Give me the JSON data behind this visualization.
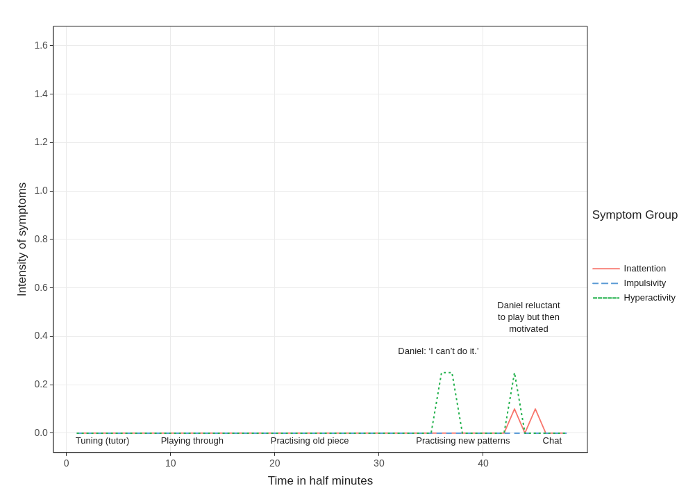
{
  "chart_data": {
    "type": "line",
    "xlabel": "Time in half minutes",
    "ylabel": "Intensity of symptoms",
    "legend_title": "Symptom Group",
    "x": [
      1,
      2,
      3,
      4,
      5,
      6,
      7,
      8,
      9,
      10,
      11,
      12,
      13,
      14,
      15,
      16,
      17,
      18,
      19,
      20,
      21,
      22,
      23,
      24,
      25,
      26,
      27,
      28,
      29,
      30,
      31,
      32,
      33,
      34,
      35,
      36,
      37,
      38,
      39,
      40,
      41,
      42,
      43,
      44,
      45,
      46,
      47,
      48
    ],
    "series": [
      {
        "name": "Inattention",
        "color": "#f8766d",
        "line_style": "solid",
        "values": [
          0,
          0,
          0,
          0,
          0,
          0,
          0,
          0,
          0,
          0,
          0,
          0,
          0,
          0,
          0,
          0,
          0,
          0,
          0,
          0,
          0,
          0,
          0,
          0,
          0,
          0,
          0,
          0,
          0,
          0,
          0,
          0,
          0,
          0,
          0,
          0,
          0,
          0,
          0,
          0,
          0,
          0,
          0.1,
          0,
          0.1,
          0,
          0,
          0
        ]
      },
      {
        "name": "Impulsivity",
        "color": "#5b9bd5",
        "line_style": "dashed",
        "values": [
          0,
          0,
          0,
          0,
          0,
          0,
          0,
          0,
          0,
          0,
          0,
          0,
          0,
          0,
          0,
          0,
          0,
          0,
          0,
          0,
          0,
          0,
          0,
          0,
          0,
          0,
          0,
          0,
          0,
          0,
          0,
          0,
          0,
          0,
          0,
          0,
          0,
          0,
          0,
          0,
          0,
          0,
          0,
          0,
          0,
          0,
          0,
          0
        ]
      },
      {
        "name": "Hyperactivity",
        "color": "#22b14c",
        "line_style": "dotted",
        "values": [
          0,
          0,
          0,
          0,
          0,
          0,
          0,
          0,
          0,
          0,
          0,
          0,
          0,
          0,
          0,
          0,
          0,
          0,
          0,
          0,
          0,
          0,
          0,
          0,
          0,
          0,
          0,
          0,
          0,
          0,
          0,
          0,
          0,
          0,
          0,
          0.25,
          0.25,
          0,
          0,
          0,
          0,
          0,
          0.25,
          0,
          0,
          0,
          0,
          0
        ]
      }
    ],
    "xlim": [
      -1.25,
      50
    ],
    "xticks": [
      0,
      10,
      20,
      30,
      40
    ],
    "ylim": [
      -0.08,
      1.68
    ],
    "yticks": [
      {
        "value": 0,
        "label": "0.0"
      },
      {
        "value": 0.2,
        "label": "0.2"
      },
      {
        "value": 0.4,
        "label": "0.4"
      },
      {
        "value": 0.6,
        "label": "0.6"
      },
      {
        "value": 0.8,
        "label": "0.8"
      },
      {
        "value": 1,
        "label": "1.0"
      },
      {
        "value": 1.2,
        "label": "1.2"
      },
      {
        "value": 1.4,
        "label": "1.4"
      },
      {
        "value": 1.6,
        "label": "1.6"
      }
    ],
    "grid": true,
    "legend": "right",
    "marker": "none",
    "annotations": [
      "Tuning (tutor)",
      "Playing through",
      "Practising old piece",
      "Practising new patterns",
      "Chat",
      "Daniel: ‘I can’t do it.’",
      "Daniel reluctant\nto play but then\nmotivated"
    ]
  }
}
